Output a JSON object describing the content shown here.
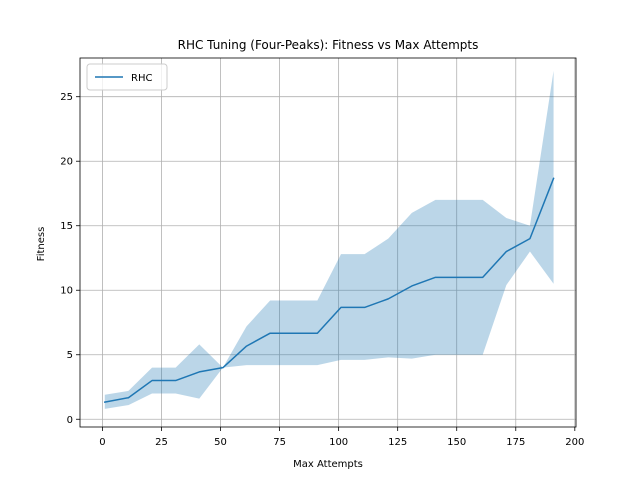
{
  "chart_data": {
    "type": "line",
    "title": "RHC Tuning (Four-Peaks): Fitness vs Max Attempts",
    "xlabel": "Max Attempts",
    "ylabel": "Fitness",
    "xlim": [
      -9.5,
      200.5
    ],
    "ylim": [
      -0.6,
      28
    ],
    "xticks": [
      0,
      25,
      50,
      75,
      100,
      125,
      150,
      175,
      200
    ],
    "yticks": [
      0,
      5,
      10,
      15,
      20,
      25
    ],
    "grid": true,
    "legend_position": "top-left",
    "series": [
      {
        "name": "RHC",
        "color": "#1f77b4",
        "band_color": "#1f77b4",
        "band_opacity": 0.3,
        "x": [
          1,
          11,
          21,
          31,
          41,
          51,
          61,
          71,
          81,
          91,
          101,
          111,
          121,
          131,
          141,
          151,
          161,
          171,
          181,
          191
        ],
        "values": [
          1.33,
          1.67,
          3.0,
          3.0,
          3.67,
          4.0,
          5.67,
          6.67,
          6.67,
          6.67,
          8.67,
          8.67,
          9.33,
          10.33,
          11.0,
          11.0,
          11.0,
          13.0,
          14.0,
          18.67
        ],
        "upper": [
          1.9,
          2.2,
          4.0,
          4.0,
          5.8,
          4.0,
          7.2,
          9.2,
          9.2,
          9.2,
          12.8,
          12.8,
          14.0,
          16.0,
          17.0,
          17.0,
          17.0,
          15.6,
          15.0,
          27.0
        ],
        "lower": [
          0.8,
          1.1,
          2.0,
          2.0,
          1.6,
          4.0,
          4.2,
          4.2,
          4.2,
          4.2,
          4.6,
          4.6,
          4.8,
          4.7,
          5.0,
          5.0,
          5.0,
          10.4,
          13.0,
          10.5
        ]
      }
    ]
  }
}
